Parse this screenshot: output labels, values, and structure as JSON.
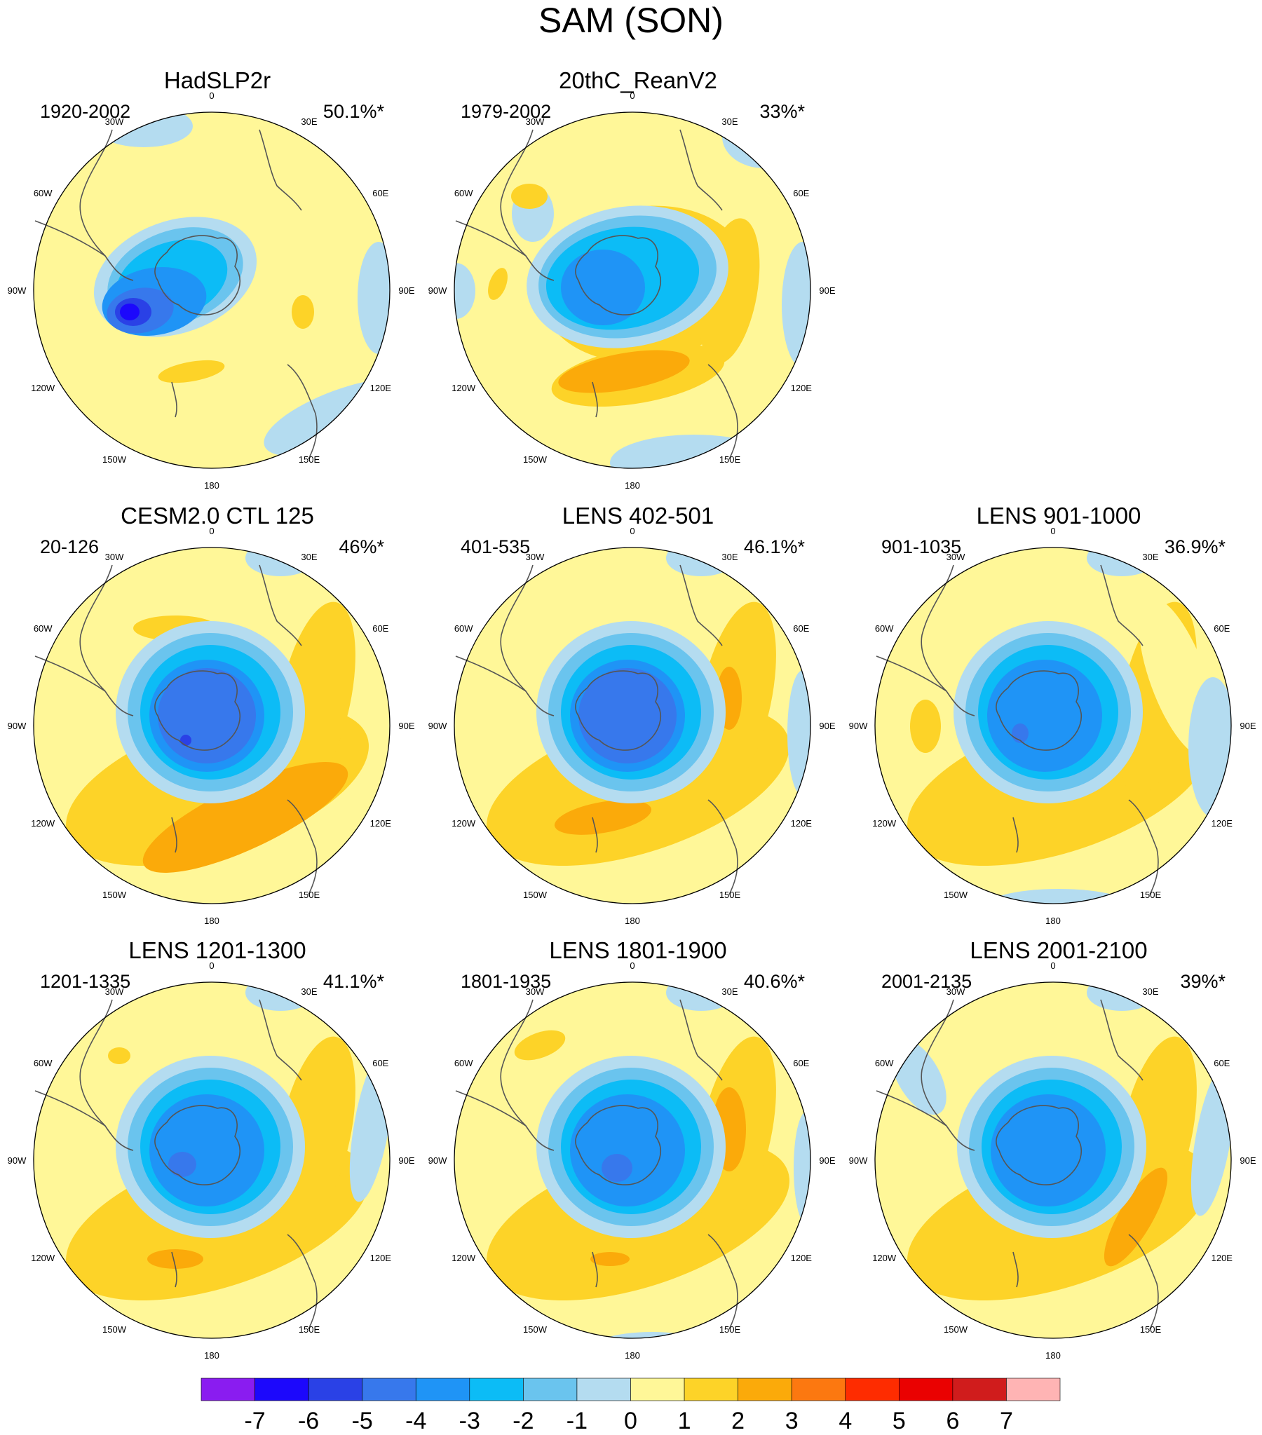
{
  "title": "SAM (SON)",
  "colors": {
    "c_m7": "#8a1cf0",
    "c_m6": "#1c08fc",
    "c_m5": "#2a41e6",
    "c_m4": "#3778ec",
    "c_m3": "#1f94f6",
    "c_m2": "#0cbcf6",
    "c_m1": "#6ac4ee",
    "c_m0": "#b4dcf0",
    "c_p0": "#fff798",
    "c_p1": "#fdd328",
    "c_p2": "#fbaa0a",
    "c_p3": "#fc7810",
    "c_p4": "#fe2c00",
    "c_p5": "#ea0101",
    "c_p6": "#d01c1c",
    "c_p7": "#ffb4b4",
    "coast": "#555555"
  },
  "longitude_labels": [
    "0",
    "30E",
    "60E",
    "90E",
    "120E",
    "150E",
    "180",
    "150W",
    "120W",
    "90W",
    "60W",
    "30W"
  ],
  "panels": [
    {
      "title": "HadSLP2r",
      "period": "1920-2002",
      "pct": "50.1%*"
    },
    {
      "title": "20thC_ReanV2",
      "period": "1979-2002",
      "pct": "33%*"
    },
    {
      "title": "CESM2.0 CTL 125",
      "period": "20-126",
      "pct": "46%*"
    },
    {
      "title": "LENS 402-501",
      "period": "401-535",
      "pct": "46.1%*"
    },
    {
      "title": "LENS 901-1000",
      "period": "901-1035",
      "pct": "36.9%*"
    },
    {
      "title": "LENS 1201-1300",
      "period": "1201-1335",
      "pct": "41.1%*"
    },
    {
      "title": "LENS 1801-1900",
      "period": "1801-1935",
      "pct": "40.6%*"
    },
    {
      "title": "LENS 2001-2100",
      "period": "2001-2135",
      "pct": "39%*"
    }
  ],
  "colorbar": {
    "ticks": [
      "-7",
      "-6",
      "-5",
      "-4",
      "-3",
      "-2",
      "-1",
      "0",
      "1",
      "2",
      "3",
      "4",
      "5",
      "6",
      "7"
    ],
    "levels": [
      -7,
      -6,
      -5,
      -4,
      -3,
      -2,
      -1,
      0,
      1,
      2,
      3,
      4,
      5,
      6,
      7
    ]
  }
}
